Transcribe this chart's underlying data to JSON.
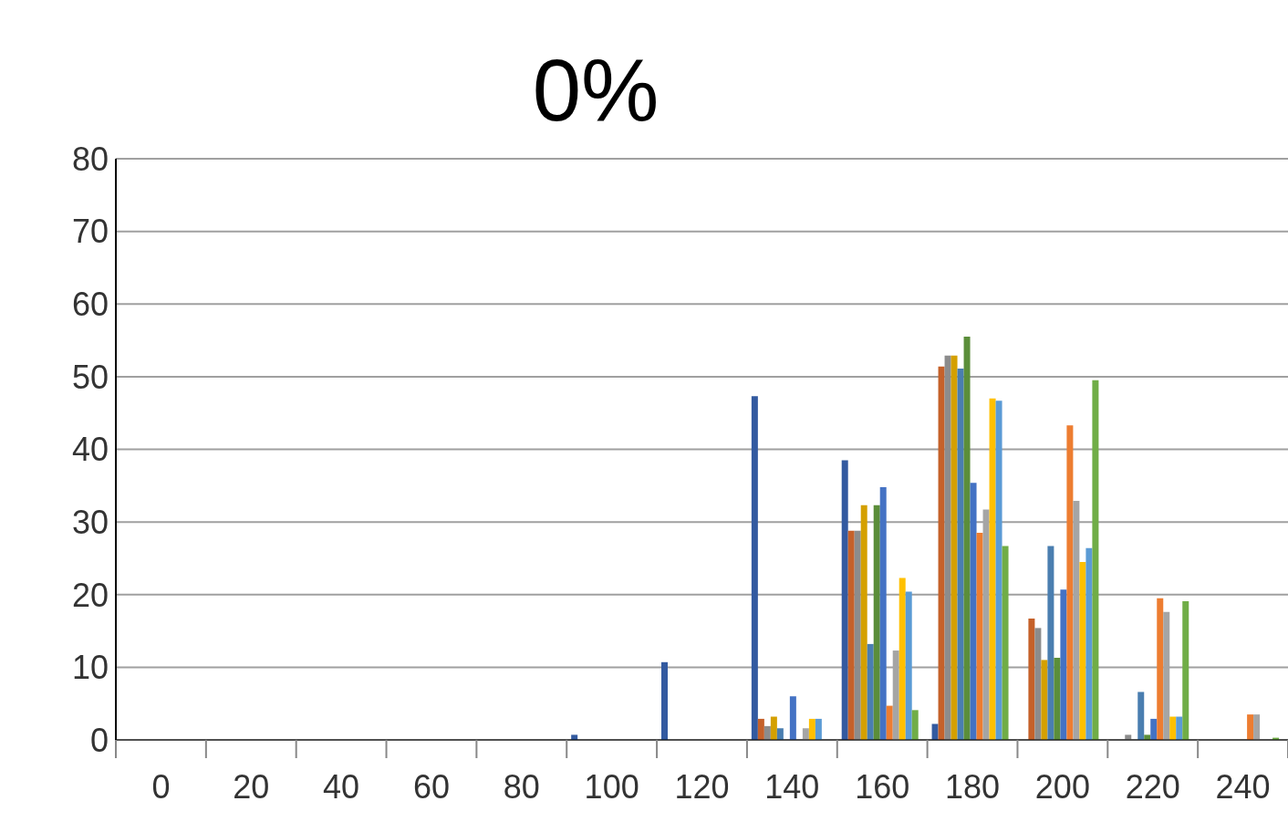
{
  "chart_data": {
    "type": "bar",
    "title": "0%",
    "categories": [
      "0",
      "20",
      "40",
      "60",
      "80",
      "100",
      "120",
      "140",
      "160",
      "180",
      "200",
      "220",
      "240"
    ],
    "ylim": [
      0,
      80
    ],
    "yticks": [
      0,
      10,
      20,
      30,
      40,
      50,
      60,
      70,
      80
    ],
    "grid": "y",
    "legend": false,
    "series": [
      {
        "color": "#335aa0",
        "values": [
          0,
          0,
          0,
          0,
          0,
          0.7,
          10.7,
          47.3,
          38.5,
          2.2,
          0,
          0,
          0
        ]
      },
      {
        "color": "#c5612a",
        "values": [
          0,
          0,
          0,
          0,
          0,
          0,
          0,
          2.9,
          28.8,
          51.4,
          16.7,
          0,
          0
        ]
      },
      {
        "color": "#8c8c8c",
        "values": [
          0,
          0,
          0,
          0,
          0,
          0,
          0,
          1.9,
          28.8,
          52.9,
          15.4,
          0.7,
          0
        ]
      },
      {
        "color": "#d4a000",
        "values": [
          0,
          0,
          0,
          0,
          0,
          0,
          0,
          3.2,
          32.3,
          52.9,
          11.0,
          0,
          0
        ]
      },
      {
        "color": "#4a7eb0",
        "values": [
          0,
          0,
          0,
          0,
          0,
          0,
          0,
          1.6,
          13.2,
          51.1,
          26.7,
          6.6,
          0
        ]
      },
      {
        "color": "#5b8e3a",
        "values": [
          0,
          0,
          0,
          0,
          0,
          0,
          0,
          0,
          32.3,
          55.5,
          11.3,
          0.7,
          0
        ]
      },
      {
        "color": "#4472c4",
        "values": [
          0,
          0,
          0,
          0,
          0,
          0,
          0,
          6.0,
          34.8,
          35.4,
          20.7,
          2.9,
          0
        ]
      },
      {
        "color": "#ed7d31",
        "values": [
          0,
          0,
          0,
          0,
          0,
          0,
          0,
          0,
          4.7,
          28.5,
          43.3,
          19.5,
          3.5
        ]
      },
      {
        "color": "#a5a5a5",
        "values": [
          0,
          0,
          0,
          0,
          0,
          0,
          0,
          1.6,
          12.3,
          31.7,
          32.9,
          17.6,
          3.5
        ]
      },
      {
        "color": "#ffc000",
        "values": [
          0,
          0,
          0,
          0,
          0,
          0,
          0,
          2.9,
          22.3,
          47.0,
          24.5,
          3.2,
          0
        ]
      },
      {
        "color": "#5b9bd5",
        "values": [
          0,
          0,
          0,
          0,
          0,
          0,
          0,
          2.9,
          20.4,
          46.7,
          26.4,
          3.2,
          0
        ]
      },
      {
        "color": "#70ad47",
        "values": [
          0,
          0,
          0,
          0,
          0,
          0,
          0,
          0,
          4.1,
          26.7,
          49.5,
          19.1,
          0.3
        ]
      }
    ]
  }
}
